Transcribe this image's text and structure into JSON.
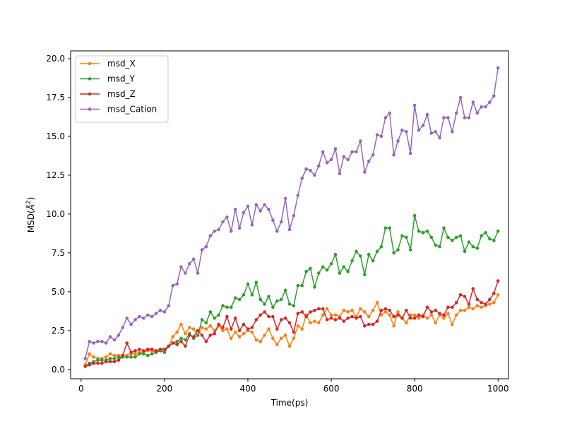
{
  "chart_data": {
    "type": "line",
    "title": "",
    "xlabel": "Time(ps)",
    "ylabel_main": "MSD(",
    "ylabel_sub": "Å",
    "ylabel_sup": "2",
    "ylabel_end": ")",
    "xlim": [
      -25,
      1025
    ],
    "ylim": [
      -0.6,
      20.5
    ],
    "xticks": [
      0,
      200,
      400,
      600,
      800,
      1000
    ],
    "yticks": [
      0.0,
      2.5,
      5.0,
      7.5,
      10.0,
      12.5,
      15.0,
      17.5,
      20.0
    ],
    "xtick_labels": [
      "0",
      "200",
      "400",
      "600",
      "800",
      "1000"
    ],
    "ytick_labels": [
      "0.0",
      "2.5",
      "5.0",
      "7.5",
      "10.0",
      "12.5",
      "15.0",
      "17.5",
      "20.0"
    ],
    "grid": false,
    "legend_position": "upper-left",
    "x": [
      10,
      20,
      30,
      40,
      50,
      60,
      70,
      80,
      90,
      100,
      110,
      120,
      130,
      140,
      150,
      160,
      170,
      180,
      190,
      200,
      210,
      220,
      230,
      240,
      250,
      260,
      270,
      280,
      290,
      300,
      310,
      320,
      330,
      340,
      350,
      360,
      370,
      380,
      390,
      400,
      410,
      420,
      430,
      440,
      450,
      460,
      470,
      480,
      490,
      500,
      510,
      520,
      530,
      540,
      550,
      560,
      570,
      580,
      590,
      600,
      610,
      620,
      630,
      640,
      650,
      660,
      670,
      680,
      690,
      700,
      710,
      720,
      730,
      740,
      750,
      760,
      770,
      780,
      790,
      800,
      810,
      820,
      830,
      840,
      850,
      860,
      870,
      880,
      890,
      900,
      910,
      920,
      930,
      940,
      950,
      960,
      970,
      980,
      990,
      1000
    ],
    "series": [
      {
        "name": "msd_X",
        "color": "#ff7f0e",
        "values": [
          0.3,
          1.0,
          0.8,
          0.7,
          0.7,
          0.8,
          1.0,
          0.9,
          0.9,
          0.9,
          0.9,
          1.0,
          1.0,
          1.1,
          1.1,
          1.2,
          1.2,
          1.1,
          1.2,
          1.3,
          1.5,
          2.1,
          2.4,
          2.9,
          2.3,
          2.7,
          2.6,
          2.2,
          2.7,
          2.6,
          2.8,
          2.5,
          2.8,
          2.5,
          2.6,
          2.0,
          2.4,
          2.1,
          2.3,
          2.5,
          2.4,
          1.9,
          1.8,
          2.2,
          2.6,
          2.0,
          1.6,
          2.0,
          2.2,
          1.5,
          2.0,
          2.8,
          2.6,
          3.5,
          3.0,
          3.1,
          3.0,
          3.5,
          3.9,
          3.5,
          3.5,
          3.4,
          3.8,
          3.7,
          3.8,
          3.4,
          3.9,
          3.7,
          3.4,
          3.8,
          4.3,
          3.5,
          3.7,
          3.5,
          2.8,
          3.7,
          3.3,
          3.0,
          3.5,
          3.5,
          3.3,
          3.5,
          3.3,
          3.5,
          3.0,
          3.5,
          3.3,
          3.6,
          2.9,
          3.5,
          3.8,
          3.8,
          4.0,
          3.9,
          4.1,
          4.0,
          4.1,
          4.2,
          4.3,
          4.8
        ]
      },
      {
        "name": "msd_Y",
        "color": "#2ca02c",
        "values": [
          0.2,
          0.4,
          0.5,
          0.6,
          0.6,
          0.6,
          0.7,
          0.7,
          0.8,
          0.8,
          0.8,
          0.8,
          0.8,
          1.0,
          1.0,
          0.9,
          1.0,
          1.1,
          1.2,
          1.1,
          1.5,
          1.7,
          1.8,
          2.0,
          1.9,
          2.3,
          2.0,
          2.2,
          3.2,
          3.0,
          3.7,
          3.3,
          3.5,
          4.1,
          4.0,
          4.0,
          4.6,
          4.5,
          4.8,
          5.5,
          4.8,
          5.6,
          4.5,
          4.2,
          4.7,
          4.0,
          4.4,
          4.5,
          5.1,
          4.2,
          4.1,
          5.4,
          5.4,
          6.3,
          6.5,
          5.3,
          6.2,
          6.6,
          6.4,
          6.8,
          7.4,
          6.2,
          6.6,
          6.3,
          7.0,
          7.6,
          7.3,
          6.1,
          7.4,
          7.0,
          7.6,
          7.9,
          9.1,
          9.1,
          7.5,
          7.7,
          8.6,
          8.5,
          7.7,
          9.9,
          8.9,
          8.8,
          8.9,
          8.5,
          8.0,
          7.9,
          9.1,
          8.5,
          8.3,
          8.5,
          8.6,
          7.6,
          8.2,
          7.9,
          7.8,
          8.6,
          8.8,
          8.4,
          8.3,
          8.9
        ]
      },
      {
        "name": "msd_Z",
        "color": "#d62728",
        "values": [
          0.2,
          0.3,
          0.4,
          0.4,
          0.4,
          0.5,
          0.5,
          0.5,
          0.6,
          0.9,
          1.7,
          1.1,
          1.2,
          1.3,
          1.2,
          1.3,
          1.3,
          1.2,
          1.3,
          1.3,
          1.5,
          1.7,
          1.6,
          1.8,
          1.5,
          2.2,
          2.1,
          2.5,
          2.2,
          1.8,
          2.2,
          2.3,
          2.9,
          2.7,
          3.4,
          2.6,
          3.3,
          2.5,
          2.9,
          2.6,
          2.7,
          3.2,
          3.5,
          3.7,
          3.4,
          3.4,
          2.6,
          3.2,
          3.3,
          3.0,
          2.4,
          3.6,
          3.7,
          3.4,
          3.7,
          3.8,
          3.9,
          3.9,
          3.2,
          3.3,
          3.2,
          3.3,
          3.1,
          3.3,
          3.4,
          3.3,
          3.4,
          2.8,
          2.9,
          2.9,
          3.1,
          3.8,
          3.9,
          3.8,
          3.4,
          3.5,
          3.3,
          3.8,
          3.3,
          3.3,
          3.5,
          3.4,
          4.0,
          3.7,
          3.8,
          3.6,
          3.5,
          4.0,
          4.0,
          4.3,
          4.8,
          4.7,
          4.2,
          5.2,
          4.5,
          4.3,
          4.2,
          4.5,
          4.9,
          5.7
        ]
      },
      {
        "name": "msd_Cation",
        "color": "#9467bd",
        "values": [
          0.7,
          1.8,
          1.7,
          1.8,
          1.8,
          1.7,
          2.1,
          1.9,
          2.2,
          2.7,
          3.3,
          2.9,
          3.2,
          3.4,
          3.3,
          3.5,
          3.4,
          3.6,
          3.8,
          3.7,
          4.1,
          5.4,
          5.5,
          6.6,
          6.2,
          6.8,
          7.1,
          6.2,
          7.7,
          7.9,
          8.6,
          8.9,
          9.0,
          9.5,
          9.8,
          8.9,
          10.3,
          9.1,
          10.1,
          10.5,
          9.3,
          10.6,
          10.2,
          10.6,
          10.3,
          9.6,
          8.9,
          9.5,
          11.0,
          9.0,
          9.9,
          11.2,
          12.3,
          12.9,
          12.8,
          12.5,
          13.1,
          14.0,
          13.3,
          13.5,
          14.2,
          12.6,
          13.7,
          13.5,
          14.0,
          14.0,
          14.7,
          12.7,
          13.4,
          13.8,
          15.1,
          15.0,
          16.2,
          16.5,
          13.8,
          14.7,
          15.4,
          15.3,
          13.9,
          17.0,
          15.4,
          15.7,
          16.4,
          15.2,
          15.3,
          14.9,
          16.2,
          16.2,
          15.3,
          16.5,
          17.5,
          16.2,
          16.2,
          17.2,
          16.5,
          16.9,
          16.9,
          17.2,
          17.6,
          19.4
        ]
      }
    ]
  }
}
